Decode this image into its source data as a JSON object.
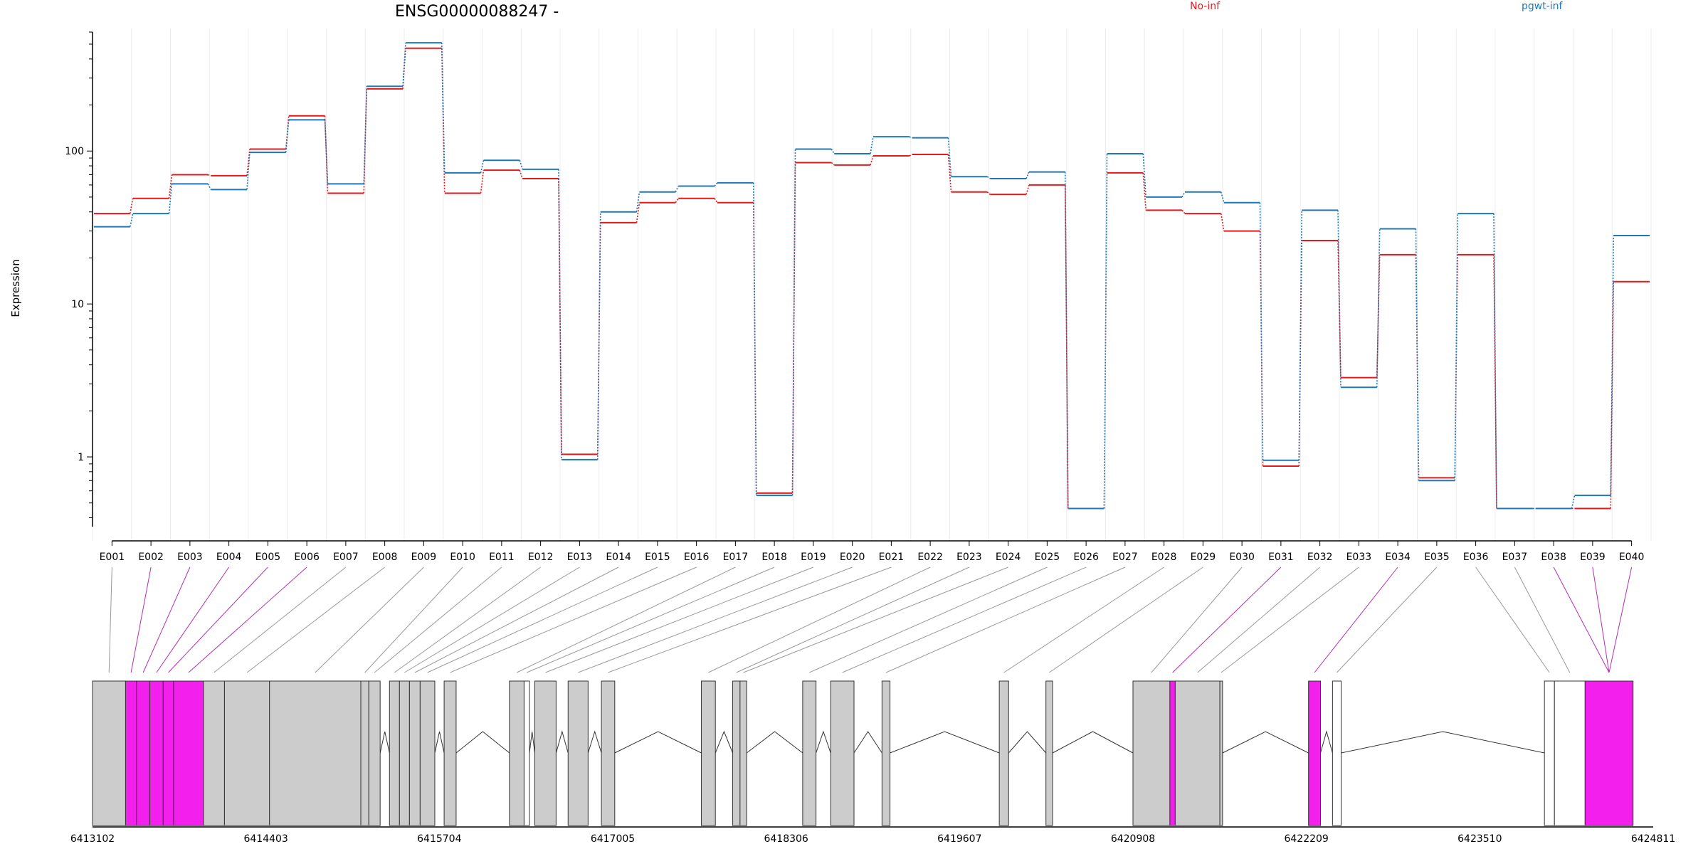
{
  "chart_data": {
    "type": "line",
    "title": "ENSG00000088247 -",
    "ylabel": "Expression",
    "yscale": "log",
    "ylim": [
      0.35,
      600
    ],
    "yticks": [
      1,
      10,
      100
    ],
    "ytick_labels": [
      "1",
      "10",
      "100"
    ],
    "categories": [
      "E001",
      "E002",
      "E003",
      "E004",
      "E005",
      "E006",
      "E007",
      "E008",
      "E009",
      "E010",
      "E011",
      "E012",
      "E013",
      "E014",
      "E015",
      "E016",
      "E017",
      "E018",
      "E019",
      "E020",
      "E021",
      "E022",
      "E023",
      "E024",
      "E025",
      "E026",
      "E027",
      "E028",
      "E029",
      "E030",
      "E031",
      "E032",
      "E033",
      "E034",
      "E035",
      "E036",
      "E037",
      "E038",
      "E039",
      "E040"
    ],
    "legend_position": "top",
    "grid": "vertical",
    "series": [
      {
        "name": "No-inf",
        "color": "#e31a1c",
        "values": [
          39,
          49,
          70,
          69,
          103,
          170,
          53,
          255,
          470,
          53,
          75,
          66,
          1.04,
          34,
          46,
          49,
          46,
          0.58,
          84,
          81,
          93,
          95,
          54,
          52,
          60,
          0.46,
          72,
          41,
          39,
          30,
          0.87,
          26,
          3.3,
          21,
          0.73,
          21,
          0.46,
          0.46,
          0.46,
          14
        ]
      },
      {
        "name": "pgwt-inf",
        "color": "#1f78b4",
        "values": [
          32,
          39,
          61,
          56,
          98,
          160,
          61,
          265,
          510,
          72,
          87,
          76,
          0.96,
          40,
          54,
          59,
          62,
          0.56,
          103,
          96,
          124,
          122,
          68,
          66,
          73,
          0.46,
          96,
          50,
          54,
          46,
          0.95,
          41,
          2.85,
          31,
          0.7,
          39,
          0.46,
          0.46,
          0.56,
          28
        ]
      }
    ],
    "gene_model": {
      "genomic_ticks": [
        "6413102",
        "6414403",
        "6415704",
        "6417005",
        "6418306",
        "6419607",
        "6420908",
        "6422209",
        "6423510",
        "6424811"
      ],
      "exons": [
        {
          "start": 6413102,
          "end": 6413350,
          "fill": "gray"
        },
        {
          "start": 6413350,
          "end": 6413432,
          "fill": "magenta"
        },
        {
          "start": 6413432,
          "end": 6413532,
          "fill": "magenta"
        },
        {
          "start": 6413532,
          "end": 6413632,
          "fill": "magenta"
        },
        {
          "start": 6413632,
          "end": 6413710,
          "fill": "magenta"
        },
        {
          "start": 6413710,
          "end": 6413935,
          "fill": "magenta"
        },
        {
          "start": 6413935,
          "end": 6414092,
          "fill": "gray"
        },
        {
          "start": 6414092,
          "end": 6414430,
          "fill": "gray"
        },
        {
          "start": 6414430,
          "end": 6415115,
          "fill": "gray"
        },
        {
          "start": 6415115,
          "end": 6415175,
          "fill": "gray"
        },
        {
          "start": 6415175,
          "end": 6415260,
          "fill": "gray"
        },
        {
          "start": 6415330,
          "end": 6415405,
          "fill": "gray"
        },
        {
          "start": 6415405,
          "end": 6415480,
          "fill": "gray"
        },
        {
          "start": 6415480,
          "end": 6415560,
          "fill": "gray"
        },
        {
          "start": 6415560,
          "end": 6415670,
          "fill": "gray"
        },
        {
          "start": 6415740,
          "end": 6415830,
          "fill": "gray"
        },
        {
          "start": 6416230,
          "end": 6416340,
          "fill": "gray"
        },
        {
          "start": 6416340,
          "end": 6416380,
          "fill": "white"
        },
        {
          "start": 6416420,
          "end": 6416580,
          "fill": "gray"
        },
        {
          "start": 6416670,
          "end": 6416820,
          "fill": "gray"
        },
        {
          "start": 6416920,
          "end": 6417020,
          "fill": "gray"
        },
        {
          "start": 6417670,
          "end": 6417775,
          "fill": "gray"
        },
        {
          "start": 6417905,
          "end": 6417960,
          "fill": "gray"
        },
        {
          "start": 6417960,
          "end": 6418010,
          "fill": "gray"
        },
        {
          "start": 6418430,
          "end": 6418530,
          "fill": "gray"
        },
        {
          "start": 6418640,
          "end": 6418815,
          "fill": "gray"
        },
        {
          "start": 6419025,
          "end": 6419085,
          "fill": "gray"
        },
        {
          "start": 6419905,
          "end": 6419975,
          "fill": "gray"
        },
        {
          "start": 6420255,
          "end": 6420305,
          "fill": "gray"
        },
        {
          "start": 6420908,
          "end": 6421185,
          "fill": "gray"
        },
        {
          "start": 6421185,
          "end": 6421225,
          "fill": "magenta"
        },
        {
          "start": 6421225,
          "end": 6421560,
          "fill": "gray"
        },
        {
          "start": 6421560,
          "end": 6421580,
          "fill": "gray"
        },
        {
          "start": 6422225,
          "end": 6422315,
          "fill": "magenta"
        },
        {
          "start": 6422405,
          "end": 6422470,
          "fill": "white"
        },
        {
          "start": 6423995,
          "end": 6424070,
          "fill": "white"
        },
        {
          "start": 6424070,
          "end": 6424300,
          "fill": "white"
        },
        {
          "start": 6424300,
          "end": 6424660,
          "fill": "magenta"
        }
      ]
    }
  }
}
